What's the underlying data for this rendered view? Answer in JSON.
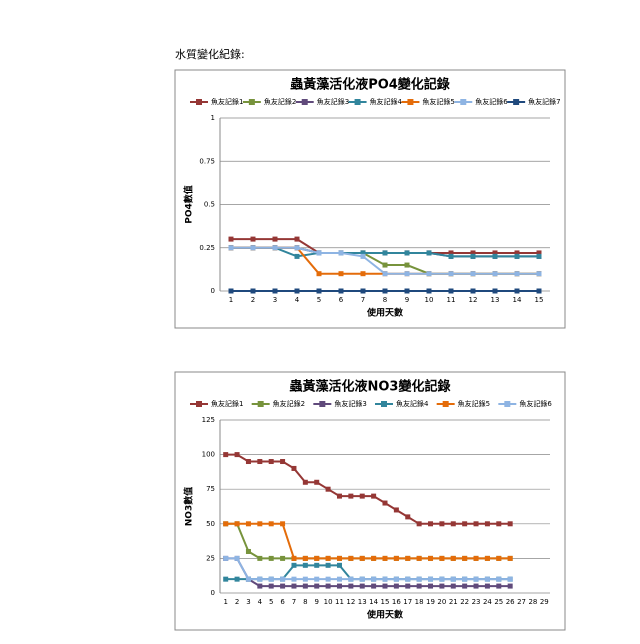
{
  "heading": "水質變化紀錄:",
  "chart_data": [
    {
      "type": "line",
      "title": "蟲黃藻活化液PO4變化記錄",
      "y_label": "PO4數值",
      "x_label": "使用天數",
      "categories": [
        "1",
        "2",
        "3",
        "4",
        "5",
        "6",
        "7",
        "8",
        "9",
        "10",
        "11",
        "12",
        "13",
        "14",
        "15"
      ],
      "ylim": [
        0,
        1
      ],
      "yticks": [
        0,
        0.25,
        0.5,
        0.75,
        1
      ],
      "grid": true,
      "series": [
        {
          "name": "魚友記錄1",
          "color": "#953735",
          "values": [
            0.3,
            0.3,
            0.3,
            0.3,
            0.22,
            0.22,
            0.22,
            0.22,
            0.22,
            0.22,
            0.22,
            0.22,
            0.22,
            0.22,
            0.22
          ]
        },
        {
          "name": "魚友記錄2",
          "color": "#77933c",
          "values": [
            0.25,
            0.25,
            0.25,
            0.25,
            0.22,
            0.22,
            0.22,
            0.15,
            0.15,
            0.1,
            0.1,
            0.1,
            0.1,
            0.1,
            0.1
          ]
        },
        {
          "name": "魚友記錄3",
          "color": "#604a7b",
          "values": [
            0.25,
            0.25,
            0.25,
            0.25,
            0.22,
            0.22,
            0.22,
            0.22,
            0.22,
            0.22,
            0.2,
            0.2,
            0.2,
            0.2,
            0.2
          ]
        },
        {
          "name": "魚友記錄4",
          "color": "#31859c",
          "values": [
            0.25,
            0.25,
            0.25,
            0.2,
            0.22,
            0.22,
            0.22,
            0.22,
            0.22,
            0.22,
            0.2,
            0.2,
            0.2,
            0.2,
            0.2
          ]
        },
        {
          "name": "魚友記錄5",
          "color": "#e46c0a",
          "values": [
            0.25,
            0.25,
            0.25,
            0.25,
            0.1,
            0.1,
            0.1,
            0.1,
            0.1,
            0.1,
            0.1,
            0.1,
            0.1,
            0.1,
            0.1
          ]
        },
        {
          "name": "魚友記錄6",
          "color": "#8eb4e3",
          "values": [
            0.25,
            0.25,
            0.25,
            0.25,
            0.22,
            0.22,
            0.2,
            0.1,
            0.1,
            0.1,
            0.1,
            0.1,
            0.1,
            0.1,
            0.1
          ]
        },
        {
          "name": "魚友記錄7",
          "color": "#1f497d",
          "values": [
            0,
            0,
            0,
            0,
            0,
            0,
            0,
            0,
            0,
            0,
            0,
            0,
            0,
            0,
            0
          ]
        }
      ]
    },
    {
      "type": "line",
      "title": "蟲黃藻活化液NO3變化記錄",
      "y_label": "NO3數值",
      "x_label": "使用天數",
      "categories": [
        "1",
        "2",
        "3",
        "4",
        "5",
        "6",
        "7",
        "8",
        "9",
        "10",
        "11",
        "12",
        "13",
        "14",
        "15",
        "16",
        "17",
        "18",
        "19",
        "20",
        "21",
        "22",
        "23",
        "24",
        "25",
        "26",
        "27",
        "28",
        "29"
      ],
      "ylim": [
        0,
        125
      ],
      "yticks": [
        0,
        25,
        50,
        75,
        100,
        125
      ],
      "grid": true,
      "series": [
        {
          "name": "魚友記錄1",
          "color": "#953735",
          "values": [
            100,
            100,
            95,
            95,
            95,
            95,
            90,
            80,
            80,
            75,
            70,
            70,
            70,
            70,
            65,
            60,
            55,
            50,
            50,
            50,
            50,
            50,
            50,
            50,
            50,
            50,
            null,
            null,
            null
          ]
        },
        {
          "name": "魚友記錄2",
          "color": "#77933c",
          "values": [
            50,
            50,
            30,
            25,
            25,
            25,
            25,
            25,
            25,
            25,
            25,
            25,
            25,
            25,
            25,
            25,
            25,
            25,
            25,
            25,
            25,
            25,
            25,
            25,
            25,
            25,
            null,
            null,
            null
          ]
        },
        {
          "name": "魚友記錄3",
          "color": "#604a7b",
          "values": [
            25,
            25,
            10,
            5,
            5,
            5,
            5,
            5,
            5,
            5,
            5,
            5,
            5,
            5,
            5,
            5,
            5,
            5,
            5,
            5,
            5,
            5,
            5,
            5,
            5,
            5,
            null,
            null,
            null
          ]
        },
        {
          "name": "魚友記錄4",
          "color": "#31859c",
          "values": [
            10,
            10,
            10,
            10,
            10,
            10,
            20,
            20,
            20,
            20,
            20,
            10,
            10,
            10,
            10,
            10,
            10,
            10,
            10,
            10,
            10,
            10,
            10,
            10,
            10,
            10,
            null,
            null,
            null
          ]
        },
        {
          "name": "魚友記錄5",
          "color": "#e46c0a",
          "values": [
            50,
            50,
            50,
            50,
            50,
            50,
            25,
            25,
            25,
            25,
            25,
            25,
            25,
            25,
            25,
            25,
            25,
            25,
            25,
            25,
            25,
            25,
            25,
            25,
            25,
            25,
            null,
            null,
            null
          ]
        },
        {
          "name": "魚友記錄6",
          "color": "#8eb4e3",
          "values": [
            25,
            25,
            10,
            10,
            10,
            10,
            10,
            10,
            10,
            10,
            10,
            10,
            10,
            10,
            10,
            10,
            10,
            10,
            10,
            10,
            10,
            10,
            10,
            10,
            10,
            10,
            null,
            null,
            null
          ]
        }
      ]
    }
  ]
}
